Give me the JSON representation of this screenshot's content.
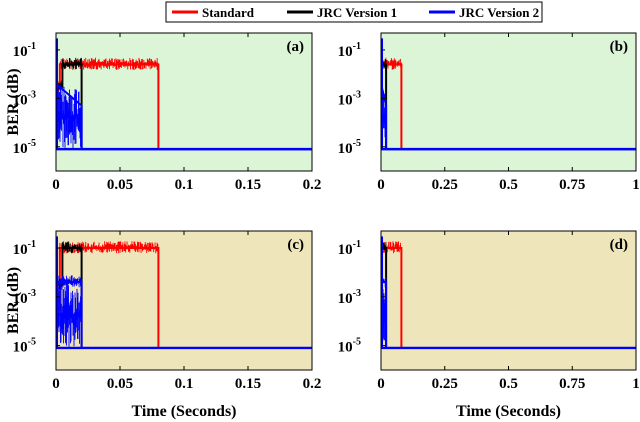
{
  "legend": {
    "items": [
      {
        "name": "Standard",
        "color": "#ff0000"
      },
      {
        "name": "JRC Version 1",
        "color": "#000000"
      },
      {
        "name": "JRC Version 2",
        "color": "#0000ff"
      }
    ]
  },
  "chart_data": [
    {
      "type": "line",
      "panel_label": "(a)",
      "background": "#dcf5d6",
      "ylabel": "BER (dB)",
      "xlabel": "",
      "xlim": [
        0,
        0.2
      ],
      "ylim": [
        1e-06,
        0.5
      ],
      "yscale": "log",
      "xticks": [
        "0",
        "0.05",
        "0.1",
        "0.15",
        "0.2"
      ],
      "yticks": [
        "10",
        "10",
        "10"
      ],
      "ytick_exponents": [
        "-1",
        "-3",
        "-5"
      ],
      "ytick_values": [
        0.1,
        0.001,
        1e-05
      ],
      "series": [
        {
          "name": "Standard",
          "color": "#ff0000",
          "x": [
            0,
            0.003,
            0.003,
            0.08,
            0.08,
            0.2
          ],
          "y": [
            0.003,
            0.003,
            0.025,
            0.025,
            8e-06,
            8e-06
          ]
        },
        {
          "name": "JRC Version 1",
          "color": "#000000",
          "x": [
            0,
            0.005,
            0.005,
            0.02,
            0.02,
            0.2
          ],
          "y": [
            0.003,
            0.003,
            0.025,
            0.025,
            8e-06,
            8e-06
          ]
        },
        {
          "name": "JRC Version 2",
          "color": "#0000ff",
          "x": [
            0,
            0.02,
            0.02,
            0.2
          ],
          "y": [
            0.004,
            0.0005,
            8e-06,
            8e-06
          ]
        }
      ]
    },
    {
      "type": "line",
      "panel_label": "(b)",
      "background": "#dcf5d6",
      "ylabel": "",
      "xlabel": "",
      "xlim": [
        0,
        1
      ],
      "ylim": [
        1e-06,
        0.5
      ],
      "yscale": "log",
      "xticks": [
        "0",
        "0.25",
        "0.5",
        "0.75",
        "1"
      ],
      "yticks": [
        "10",
        "10",
        "10"
      ],
      "ytick_exponents": [
        "-1",
        "-3",
        "-5"
      ],
      "ytick_values": [
        0.1,
        0.001,
        1e-05
      ],
      "series": [
        {
          "name": "Standard",
          "color": "#ff0000",
          "x": [
            0,
            0.08,
            0.08,
            1
          ],
          "y": [
            0.025,
            0.025,
            8e-06,
            8e-06
          ]
        },
        {
          "name": "JRC Version 1",
          "color": "#000000",
          "x": [
            0,
            0.02,
            0.02,
            1
          ],
          "y": [
            0.025,
            0.025,
            8e-06,
            8e-06
          ]
        },
        {
          "name": "JRC Version 2",
          "color": "#0000ff",
          "x": [
            0,
            0.02,
            0.02,
            1
          ],
          "y": [
            0.004,
            0.0005,
            8e-06,
            8e-06
          ]
        }
      ]
    },
    {
      "type": "line",
      "panel_label": "(c)",
      "background": "#eee6ba",
      "ylabel": "BER (dB)",
      "xlabel": "Time (Seconds)",
      "xlim": [
        0,
        0.2
      ],
      "ylim": [
        1e-06,
        0.5
      ],
      "yscale": "log",
      "xticks": [
        "0",
        "0.05",
        "0.1",
        "0.15",
        "0.2"
      ],
      "yticks": [
        "10",
        "10",
        "10"
      ],
      "ytick_exponents": [
        "-1",
        "-3",
        "-5"
      ],
      "ytick_values": [
        0.1,
        0.001,
        1e-05
      ],
      "series": [
        {
          "name": "Standard",
          "color": "#ff0000",
          "x": [
            0,
            0.003,
            0.003,
            0.08,
            0.08,
            0.2
          ],
          "y": [
            0.0003,
            0.0003,
            0.1,
            0.1,
            8e-06,
            8e-06
          ]
        },
        {
          "name": "JRC Version 1",
          "color": "#000000",
          "x": [
            0,
            0.005,
            0.005,
            0.02,
            0.02,
            0.2
          ],
          "y": [
            0.003,
            0.003,
            0.1,
            0.1,
            8e-06,
            8e-06
          ]
        },
        {
          "name": "JRC Version 2",
          "color": "#0000ff",
          "x": [
            0,
            0.02,
            0.02,
            0.2
          ],
          "y": [
            0.004,
            0.004,
            8e-06,
            8e-06
          ]
        }
      ]
    },
    {
      "type": "line",
      "panel_label": "(d)",
      "background": "#eee6ba",
      "ylabel": "",
      "xlabel": "Time (Seconds)",
      "xlim": [
        0,
        1
      ],
      "ylim": [
        1e-06,
        0.5
      ],
      "yscale": "log",
      "xticks": [
        "0",
        "0.25",
        "0.5",
        "0.75",
        "1"
      ],
      "yticks": [
        "10",
        "10",
        "10"
      ],
      "ytick_exponents": [
        "-1",
        "-3",
        "-5"
      ],
      "ytick_values": [
        0.1,
        0.001,
        1e-05
      ],
      "series": [
        {
          "name": "Standard",
          "color": "#ff0000",
          "x": [
            0,
            0.08,
            0.08,
            1
          ],
          "y": [
            0.1,
            0.1,
            8e-06,
            8e-06
          ]
        },
        {
          "name": "JRC Version 1",
          "color": "#000000",
          "x": [
            0,
            0.02,
            0.02,
            1
          ],
          "y": [
            0.1,
            0.1,
            8e-06,
            8e-06
          ]
        },
        {
          "name": "JRC Version 2",
          "color": "#0000ff",
          "x": [
            0,
            0.02,
            0.02,
            1
          ],
          "y": [
            0.004,
            0.004,
            8e-06,
            8e-06
          ]
        }
      ]
    }
  ]
}
